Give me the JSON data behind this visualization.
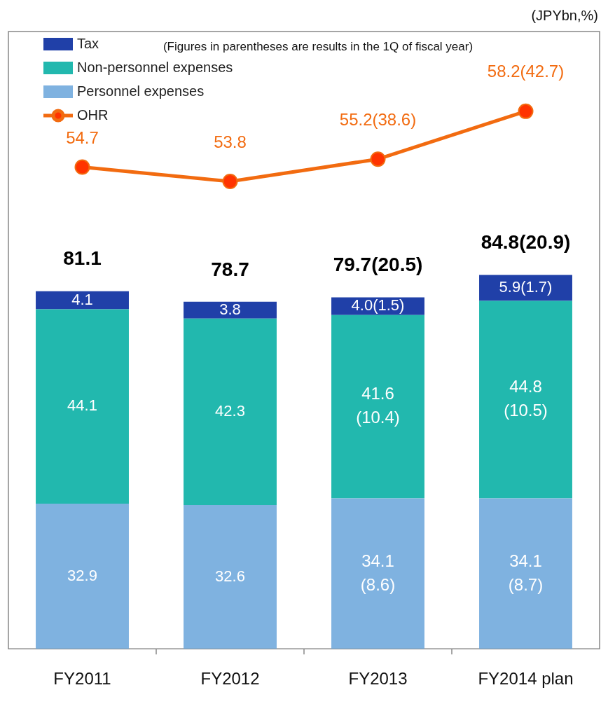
{
  "chart_data": {
    "type": "bar",
    "stacked": true,
    "categories": [
      "FY2011",
      "FY2012",
      "FY2013",
      "FY2014 plan"
    ],
    "series": [
      {
        "name": "Personnel expenses",
        "color": "#7fb2e0",
        "values": [
          32.9,
          32.6,
          34.1,
          34.1
        ],
        "value_labels": [
          "32.9",
          "32.6",
          "34.1\n(8.6)",
          "34.1\n(8.7)"
        ]
      },
      {
        "name": "Non-personnel expenses",
        "color": "#22b8ae",
        "values": [
          44.1,
          42.3,
          41.6,
          44.8
        ],
        "value_labels": [
          "44.1",
          "42.3",
          "41.6\n(10.4)",
          "44.8\n(10.5)"
        ]
      },
      {
        "name": "Tax",
        "color": "#2040a8",
        "values": [
          4.1,
          3.8,
          4.0,
          5.9
        ],
        "value_labels": [
          "4.1",
          "3.8",
          "4.0(1.5)",
          "5.9(1.7)"
        ]
      },
      {
        "name": "OHR",
        "type": "line",
        "axis": "y2",
        "color": "#f26b10",
        "values": [
          54.7,
          53.8,
          55.2,
          58.2
        ],
        "value_labels": [
          "54.7",
          "53.8",
          "55.2(38.6)",
          "58.2(42.7)"
        ]
      }
    ],
    "totals": [
      "81.1",
      "78.7",
      "79.7(20.5)",
      "84.8(20.9)"
    ],
    "ylim": [
      0,
      140
    ],
    "y2lim": [
      24.5,
      63.2
    ],
    "legend": "top left",
    "marker": "circle",
    "line_style": "solid",
    "grid": false,
    "tick_labels": "x",
    "annotations": [
      "(JPYbn,%)",
      "(Figures in parentheses are results in the 1Q of fiscal year)"
    ]
  }
}
